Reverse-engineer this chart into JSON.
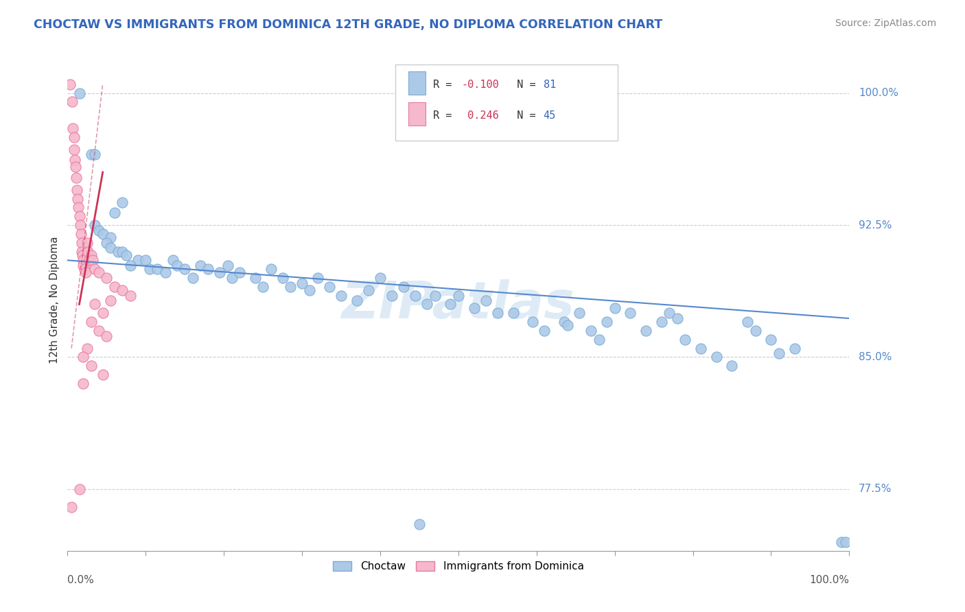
{
  "title": "CHOCTAW VS IMMIGRANTS FROM DOMINICA 12TH GRADE, NO DIPLOMA CORRELATION CHART",
  "source": "Source: ZipAtlas.com",
  "ylabel": "12th Grade, No Diploma",
  "xlim": [
    0.0,
    100.0
  ],
  "ylim": [
    74.0,
    102.5
  ],
  "y_ticks": [
    77.5,
    85.0,
    92.5,
    100.0
  ],
  "y_tick_labels": [
    "77.5%",
    "85.0%",
    "92.5%",
    "100.0%"
  ],
  "x_ticks": [
    0,
    10,
    20,
    30,
    40,
    50,
    60,
    70,
    80,
    90,
    100
  ],
  "blue_color": "#adc9e8",
  "pink_color": "#f5b8cc",
  "blue_edge_color": "#7aadd4",
  "pink_edge_color": "#e87aa0",
  "blue_line_color": "#5588cc",
  "pink_line_color": "#cc3355",
  "watermark": "ZIPatlas",
  "blue_scatter": [
    [
      1.5,
      100.0
    ],
    [
      3.0,
      96.5
    ],
    [
      3.5,
      96.5
    ],
    [
      6.0,
      93.2
    ],
    [
      7.0,
      93.8
    ],
    [
      3.5,
      92.5
    ],
    [
      4.0,
      92.2
    ],
    [
      4.5,
      92.0
    ],
    [
      5.5,
      91.8
    ],
    [
      5.0,
      91.5
    ],
    [
      5.5,
      91.2
    ],
    [
      6.5,
      91.0
    ],
    [
      7.0,
      91.0
    ],
    [
      7.5,
      90.8
    ],
    [
      9.0,
      90.5
    ],
    [
      10.0,
      90.5
    ],
    [
      8.0,
      90.2
    ],
    [
      10.5,
      90.0
    ],
    [
      11.5,
      90.0
    ],
    [
      12.5,
      89.8
    ],
    [
      13.5,
      90.5
    ],
    [
      14.0,
      90.2
    ],
    [
      15.0,
      90.0
    ],
    [
      16.0,
      89.5
    ],
    [
      17.0,
      90.2
    ],
    [
      18.0,
      90.0
    ],
    [
      19.5,
      89.8
    ],
    [
      20.5,
      90.2
    ],
    [
      21.0,
      89.5
    ],
    [
      22.0,
      89.8
    ],
    [
      24.0,
      89.5
    ],
    [
      25.0,
      89.0
    ],
    [
      26.0,
      90.0
    ],
    [
      27.5,
      89.5
    ],
    [
      28.5,
      89.0
    ],
    [
      30.0,
      89.2
    ],
    [
      31.0,
      88.8
    ],
    [
      32.0,
      89.5
    ],
    [
      33.5,
      89.0
    ],
    [
      35.0,
      88.5
    ],
    [
      37.0,
      88.2
    ],
    [
      38.5,
      88.8
    ],
    [
      40.0,
      89.5
    ],
    [
      41.5,
      88.5
    ],
    [
      43.0,
      89.0
    ],
    [
      44.5,
      88.5
    ],
    [
      46.0,
      88.0
    ],
    [
      47.0,
      88.5
    ],
    [
      49.0,
      88.0
    ],
    [
      50.0,
      88.5
    ],
    [
      52.0,
      87.8
    ],
    [
      53.5,
      88.2
    ],
    [
      55.0,
      87.5
    ],
    [
      57.0,
      87.5
    ],
    [
      59.5,
      87.0
    ],
    [
      61.0,
      86.5
    ],
    [
      63.5,
      87.0
    ],
    [
      64.0,
      86.8
    ],
    [
      65.5,
      87.5
    ],
    [
      67.0,
      86.5
    ],
    [
      68.0,
      86.0
    ],
    [
      69.0,
      87.0
    ],
    [
      70.0,
      87.8
    ],
    [
      72.0,
      87.5
    ],
    [
      74.0,
      86.5
    ],
    [
      76.0,
      87.0
    ],
    [
      77.0,
      87.5
    ],
    [
      78.0,
      87.2
    ],
    [
      79.0,
      86.0
    ],
    [
      81.0,
      85.5
    ],
    [
      83.0,
      85.0
    ],
    [
      85.0,
      84.5
    ],
    [
      87.0,
      87.0
    ],
    [
      88.0,
      86.5
    ],
    [
      90.0,
      86.0
    ],
    [
      91.0,
      85.2
    ],
    [
      93.0,
      85.5
    ],
    [
      45.0,
      75.5
    ],
    [
      99.0,
      74.5
    ],
    [
      99.5,
      74.5
    ]
  ],
  "pink_scatter": [
    [
      0.3,
      100.5
    ],
    [
      0.6,
      99.5
    ],
    [
      0.7,
      98.0
    ],
    [
      0.8,
      97.5
    ],
    [
      0.8,
      96.8
    ],
    [
      0.9,
      96.2
    ],
    [
      1.0,
      95.8
    ],
    [
      1.1,
      95.2
    ],
    [
      1.2,
      94.5
    ],
    [
      1.3,
      94.0
    ],
    [
      1.4,
      93.5
    ],
    [
      1.5,
      93.0
    ],
    [
      1.6,
      92.5
    ],
    [
      1.7,
      92.0
    ],
    [
      1.8,
      91.5
    ],
    [
      1.8,
      91.0
    ],
    [
      1.9,
      90.8
    ],
    [
      2.0,
      90.5
    ],
    [
      2.0,
      90.2
    ],
    [
      2.2,
      90.0
    ],
    [
      2.3,
      89.8
    ],
    [
      2.5,
      91.5
    ],
    [
      2.6,
      91.0
    ],
    [
      2.8,
      90.5
    ],
    [
      3.0,
      90.8
    ],
    [
      3.2,
      90.5
    ],
    [
      3.5,
      90.0
    ],
    [
      4.0,
      89.8
    ],
    [
      5.0,
      89.5
    ],
    [
      6.0,
      89.0
    ],
    [
      7.0,
      88.8
    ],
    [
      8.0,
      88.5
    ],
    [
      3.5,
      88.0
    ],
    [
      4.5,
      87.5
    ],
    [
      5.5,
      88.2
    ],
    [
      3.0,
      87.0
    ],
    [
      4.0,
      86.5
    ],
    [
      5.0,
      86.2
    ],
    [
      2.5,
      85.5
    ],
    [
      2.0,
      85.0
    ],
    [
      3.0,
      84.5
    ],
    [
      4.5,
      84.0
    ],
    [
      2.0,
      83.5
    ],
    [
      1.5,
      77.5
    ],
    [
      0.5,
      76.5
    ]
  ],
  "blue_trend": {
    "x_start": 0.0,
    "y_start": 90.5,
    "x_end": 100.0,
    "y_end": 87.2
  },
  "pink_trend_solid": {
    "x_start": 1.5,
    "y_start": 88.0,
    "x_end": 4.5,
    "y_end": 95.5
  },
  "pink_trend_dashed": {
    "x_start": 0.5,
    "y_start": 85.5,
    "x_end": 4.5,
    "y_end": 100.5
  }
}
